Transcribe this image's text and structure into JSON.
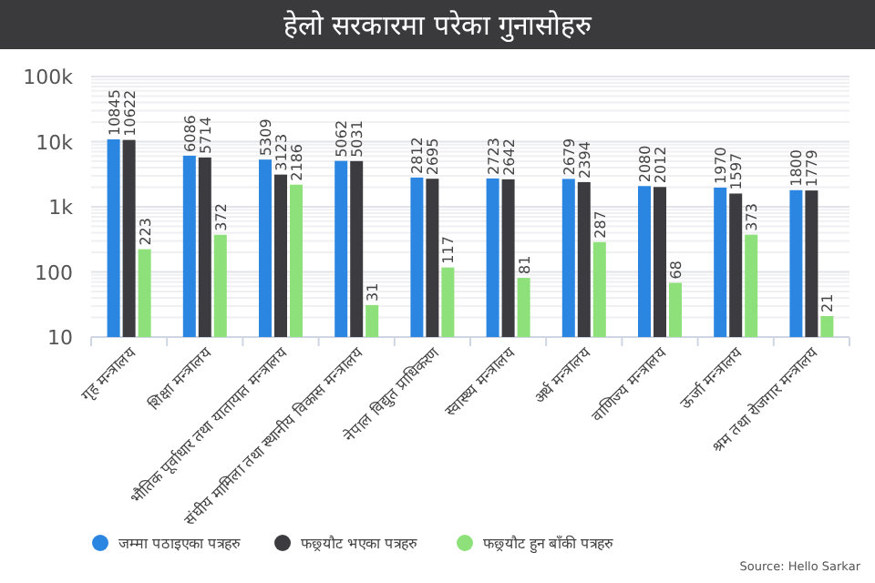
{
  "chart_data": {
    "type": "bar",
    "title": "हेलो सरकारमा परेका गुनासोहरु",
    "categories": [
      "गृह मन्त्रालय",
      "शिक्षा मन्त्रालय",
      "भौतिक पूर्वाधार तथा यातायात मन्त्रालय",
      "संघीय मामिला तथा स्थानीय विकास मन्त्रालय",
      "नेपाल विद्युत प्राधिकरण",
      "स्वास्थ्य मन्त्रालय",
      "अर्थ मन्त्रालय",
      "वाणिज्य मन्त्रालय",
      "ऊर्जा मन्त्रालय",
      "श्रम तथा रोजगार मन्त्रालय"
    ],
    "series": [
      {
        "name": "जम्मा पठाइएका पत्रहरु",
        "color": "#2a86e0",
        "values": [
          10845,
          6086,
          5309,
          5062,
          2812,
          2723,
          2679,
          2080,
          1970,
          1800
        ]
      },
      {
        "name": "फछ्र्यौट भएका पत्रहरु",
        "color": "#3c3c40",
        "values": [
          10622,
          5714,
          3123,
          5031,
          2695,
          2642,
          2394,
          2012,
          1597,
          1779
        ]
      },
      {
        "name": "फछ्र्यौट हुन बाँकी पत्रहरु",
        "color": "#8ee07a",
        "values": [
          223,
          372,
          2186,
          31,
          117,
          81,
          287,
          68,
          373,
          21
        ]
      }
    ],
    "log": true,
    "ylim": [
      10,
      100000
    ],
    "yticks": [
      {
        "value": 100000,
        "label": "100k"
      },
      {
        "value": 10000,
        "label": "10k"
      },
      {
        "value": 1000,
        "label": "1k"
      },
      100,
      10
    ],
    "grid": "y",
    "legend": "bottom",
    "data_labels": true,
    "annotations": [
      "Source: Hello Sarkar"
    ]
  }
}
